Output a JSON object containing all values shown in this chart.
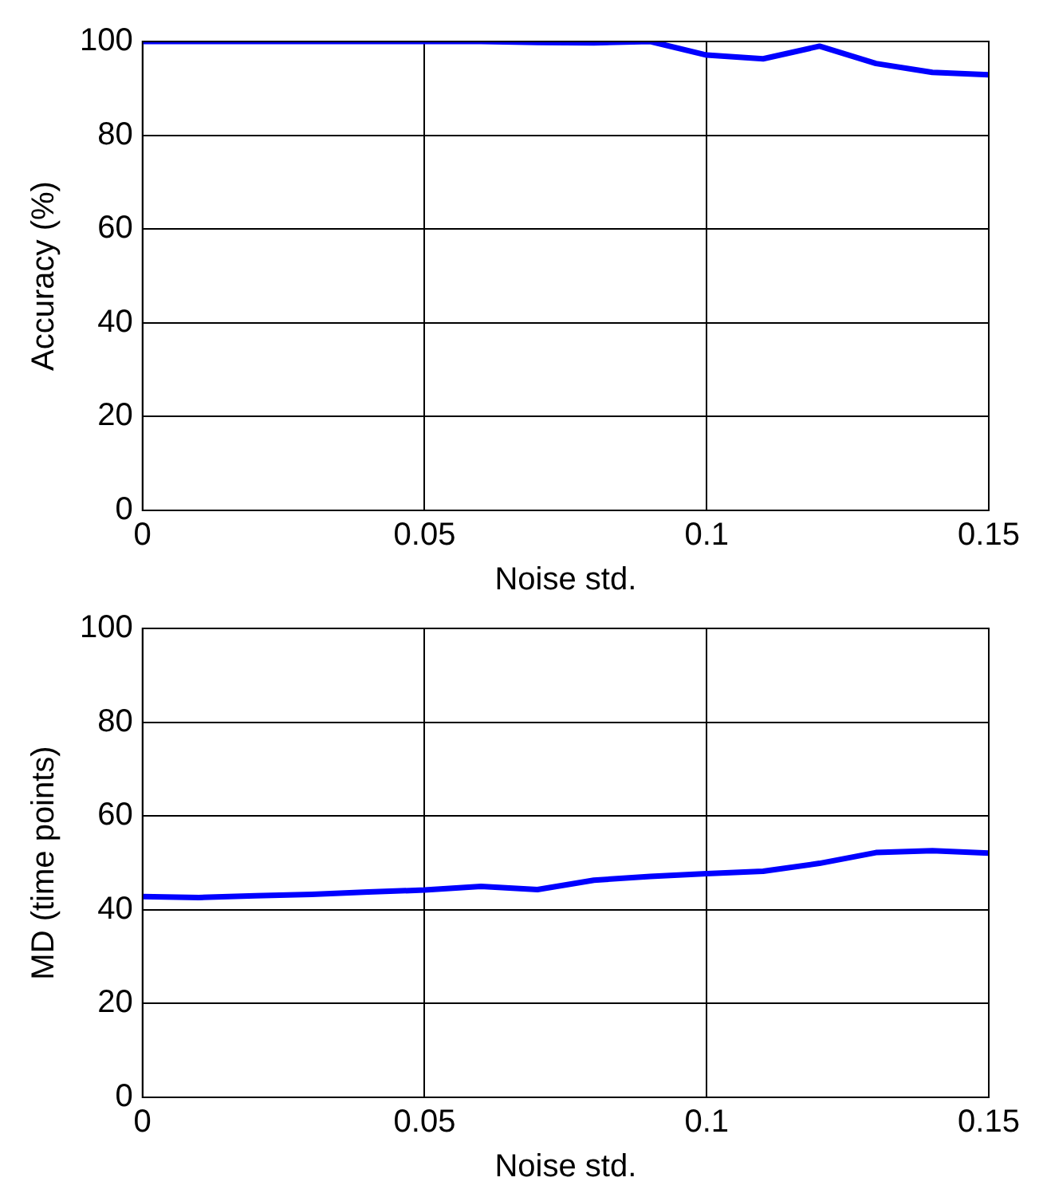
{
  "chart_data": [
    {
      "type": "line",
      "xlabel": "Noise std.",
      "ylabel": "Accuracy (%)",
      "x": [
        0,
        0.01,
        0.02,
        0.03,
        0.04,
        0.05,
        0.06,
        0.07,
        0.08,
        0.09,
        0.1,
        0.11,
        0.12,
        0.13,
        0.14,
        0.15
      ],
      "series": [
        {
          "color": "#0000ff",
          "values": [
            100,
            100,
            100,
            100,
            100,
            100,
            100,
            99.8,
            99.7,
            100,
            97.1,
            96.3,
            99,
            95.3,
            93.4,
            92.9
          ]
        }
      ],
      "xlim": [
        0,
        0.15
      ],
      "xticks": [
        0,
        0.05,
        0.1,
        0.15
      ],
      "ylim": [
        0,
        100
      ],
      "yticks": [
        0,
        20,
        40,
        60,
        80,
        100
      ],
      "grid": true,
      "line_style": "solid",
      "marker": "none"
    },
    {
      "type": "line",
      "xlabel": "Noise std.",
      "ylabel": "MD (time points)",
      "x": [
        0,
        0.01,
        0.02,
        0.03,
        0.04,
        0.05,
        0.06,
        0.07,
        0.08,
        0.09,
        0.1,
        0.11,
        0.12,
        0.13,
        0.14,
        0.15
      ],
      "series": [
        {
          "color": "#0000ff",
          "values": [
            42.8,
            42.6,
            43,
            43.3,
            43.8,
            44.2,
            45,
            44.3,
            46.3,
            47.1,
            47.7,
            48.2,
            49.9,
            52.2,
            52.6,
            52.1
          ]
        }
      ],
      "xlim": [
        0,
        0.15
      ],
      "xticks": [
        0,
        0.05,
        0.1,
        0.15
      ],
      "ylim": [
        0,
        100
      ],
      "yticks": [
        0,
        20,
        40,
        60,
        80,
        100
      ],
      "grid": true,
      "line_style": "solid",
      "marker": "none"
    }
  ]
}
